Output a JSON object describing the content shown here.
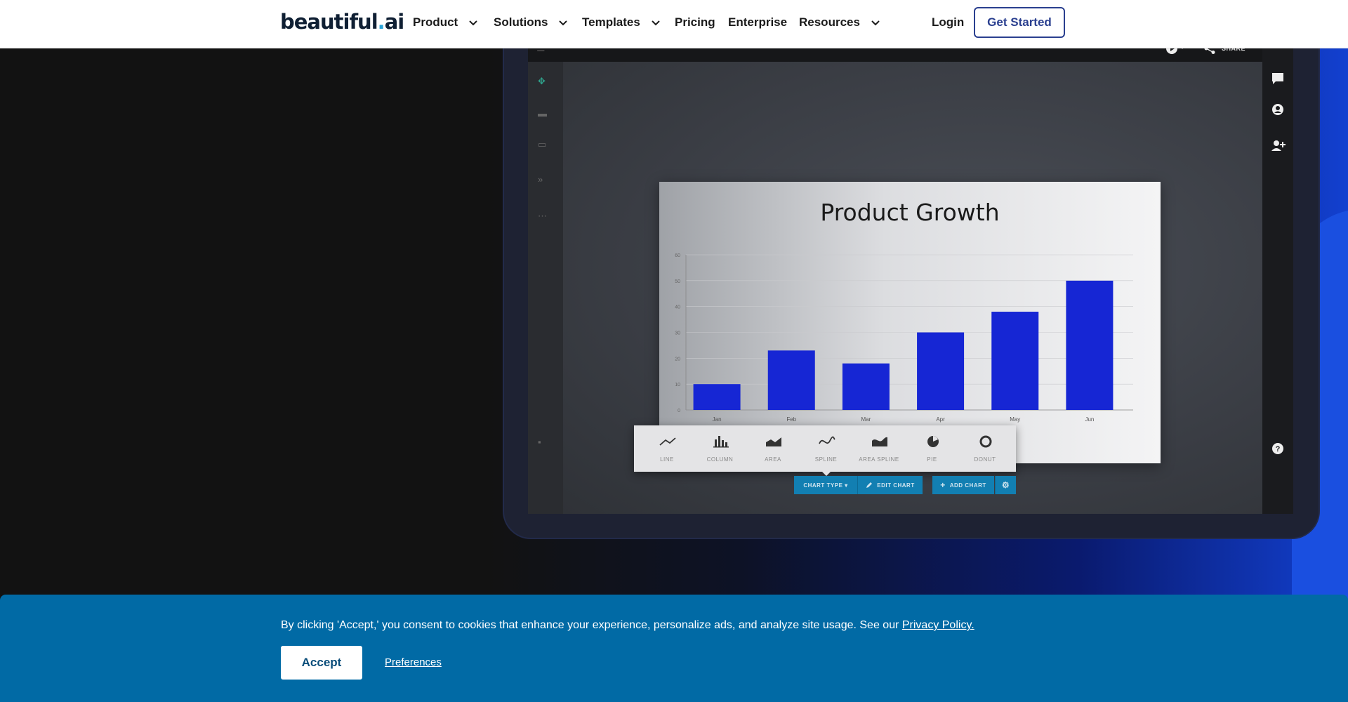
{
  "nav": {
    "logo_text": "beautiful",
    "logo_dot": ".",
    "logo_suffix": "ai",
    "items": [
      {
        "label": "Product",
        "has_dropdown": true
      },
      {
        "label": "Solutions",
        "has_dropdown": true
      },
      {
        "label": "Templates",
        "has_dropdown": true
      },
      {
        "label": "Pricing",
        "has_dropdown": false
      },
      {
        "label": "Enterprise",
        "has_dropdown": false
      },
      {
        "label": "Resources",
        "has_dropdown": true
      }
    ],
    "login_label": "Login",
    "cta_label": "Get Started"
  },
  "app_mock": {
    "share_label": "SHARE",
    "badge": "b.",
    "chart_types": [
      {
        "label": "LINE",
        "icon": "line-chart-icon"
      },
      {
        "label": "COLUMN",
        "icon": "column-chart-icon"
      },
      {
        "label": "AREA",
        "icon": "area-chart-icon"
      },
      {
        "label": "SPLINE",
        "icon": "spline-chart-icon"
      },
      {
        "label": "AREA SPLINE",
        "icon": "area-spline-chart-icon"
      },
      {
        "label": "PIE",
        "icon": "pie-chart-icon"
      },
      {
        "label": "DONUT",
        "icon": "donut-chart-icon"
      }
    ],
    "chart_type_button": "CHART TYPE ▾",
    "edit_chart_button": "EDIT CHART",
    "add_chart_button": "ADD CHART"
  },
  "chart_data": {
    "type": "bar",
    "title": "Product Growth",
    "categories": [
      "Jan",
      "Feb",
      "Mar",
      "Apr",
      "May",
      "Jun"
    ],
    "values": [
      10,
      23,
      18,
      30,
      38,
      50
    ],
    "yticks": [
      0,
      10,
      20,
      30,
      40,
      50,
      60
    ],
    "ylim": [
      0,
      60
    ],
    "xlabel": "",
    "ylabel": "",
    "grid": true,
    "bar_color": "#1626d4"
  },
  "cookie": {
    "text": "By clicking 'Accept,' you consent to cookies that enhance your experience, personalize ads, and analyze site usage. See our ",
    "link_label": "Privacy Policy.",
    "accept_label": "Accept",
    "preferences_label": "Preferences"
  },
  "colors": {
    "nav_cta_border": "#2a3f8f",
    "cookie_bg": "#016aa5",
    "accent_teal": "#127fb2"
  }
}
